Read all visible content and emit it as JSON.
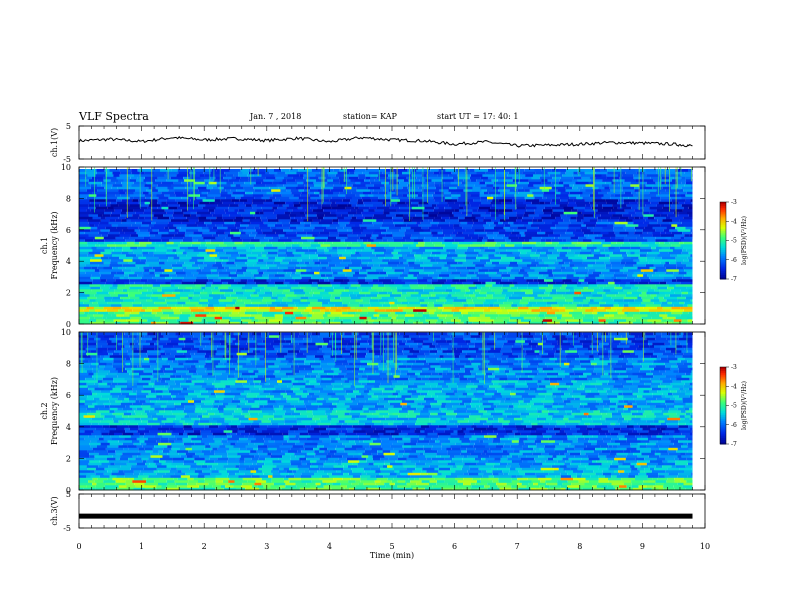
{
  "header": {
    "title": "VLF Spectra",
    "date": "Jan. 7 , 2018",
    "station": "station= KAP",
    "start": "start UT = 17: 40: 1"
  },
  "chart_data": [
    {
      "type": "line",
      "panel": "ch1-waveform",
      "ylabel": "ch.1(V)",
      "yticks": [
        "5",
        "-5"
      ],
      "ylim": [
        -5,
        5
      ],
      "xlim": [
        0,
        10
      ],
      "series": [
        {
          "x": [
            0,
            0.5,
            1,
            1.5,
            2,
            2.5,
            3,
            3.5,
            4,
            4.5,
            5,
            5.5,
            6,
            6.5,
            7,
            7.5,
            8,
            8.5,
            9,
            9.5,
            9.8
          ],
          "y": [
            0.5,
            1,
            0.3,
            1.5,
            0.8,
            1.2,
            0.6,
            1.3,
            0.2,
            1.5,
            0.8,
            0.5,
            -0.5,
            0.2,
            -1,
            -0.8,
            -0.5,
            0,
            -0.2,
            -0.5,
            -1
          ]
        }
      ],
      "color": "#000000"
    },
    {
      "type": "heatmap",
      "panel": "ch1-spectrogram",
      "ylabel": "ch.1",
      "ylabel2": "Frequency (kHz)",
      "ylim": [
        0,
        10
      ],
      "yticks": [
        "0",
        "2",
        "4",
        "6",
        "8",
        "10"
      ],
      "xlim": [
        0,
        9.8
      ],
      "colorbar": {
        "label": "log(PSD)(V²/Hz)",
        "range": [
          -7,
          -3
        ],
        "ticks": [
          "-3",
          "-4",
          "-5",
          "-6",
          "-7"
        ]
      },
      "bands": [
        {
          "from": 0,
          "to": 0.8,
          "level": 0.55
        },
        {
          "from": 0.8,
          "to": 1.2,
          "level": 0.7
        },
        {
          "from": 1.2,
          "to": 2.6,
          "level": 0.45
        },
        {
          "from": 2.6,
          "to": 3.0,
          "level": 0.15
        },
        {
          "from": 3.0,
          "to": 4.0,
          "level": 0.3
        },
        {
          "from": 4.0,
          "to": 5.0,
          "level": 0.35
        },
        {
          "from": 5.0,
          "to": 5.4,
          "level": 0.5
        },
        {
          "from": 5.4,
          "to": 6.6,
          "level": 0.2
        },
        {
          "from": 6.6,
          "to": 8.0,
          "level": 0.12
        },
        {
          "from": 8.0,
          "to": 10,
          "level": 0.25
        }
      ]
    },
    {
      "type": "heatmap",
      "panel": "ch2-spectrogram",
      "ylabel": "ch.2",
      "ylabel2": "Frequency (kHz)",
      "ylim": [
        0,
        10
      ],
      "yticks": [
        "0",
        "2",
        "4",
        "6",
        "8",
        "10"
      ],
      "xlim": [
        0,
        9.8
      ],
      "colorbar": {
        "label": "log(PSD)(V²/Hz)",
        "range": [
          -7,
          -3
        ],
        "ticks": [
          "-3",
          "-4",
          "-5",
          "-6",
          "-7"
        ]
      },
      "bands": [
        {
          "from": 0,
          "to": 0.8,
          "level": 0.55
        },
        {
          "from": 0.8,
          "to": 2.0,
          "level": 0.35
        },
        {
          "from": 2.0,
          "to": 3.6,
          "level": 0.3
        },
        {
          "from": 3.6,
          "to": 4.2,
          "level": 0.15
        },
        {
          "from": 4.2,
          "to": 5.2,
          "level": 0.4
        },
        {
          "from": 5.2,
          "to": 7.0,
          "level": 0.35
        },
        {
          "from": 7.0,
          "to": 8.4,
          "level": 0.3
        },
        {
          "from": 8.4,
          "to": 10,
          "level": 0.2
        }
      ]
    },
    {
      "type": "line",
      "panel": "ch3-waveform",
      "ylabel": "ch.3(V)",
      "yticks": [
        "5",
        "-5"
      ],
      "ylim": [
        -5,
        5
      ],
      "xlim": [
        0,
        10
      ],
      "xlabel": "Time (min)",
      "xticks": [
        "0",
        "1",
        "2",
        "3",
        "4",
        "5",
        "6",
        "7",
        "8",
        "9",
        "10"
      ],
      "series": [
        {
          "x": [
            0,
            9.8
          ],
          "y": [
            -1.5,
            -1.5
          ]
        }
      ],
      "color": "#000000"
    }
  ]
}
